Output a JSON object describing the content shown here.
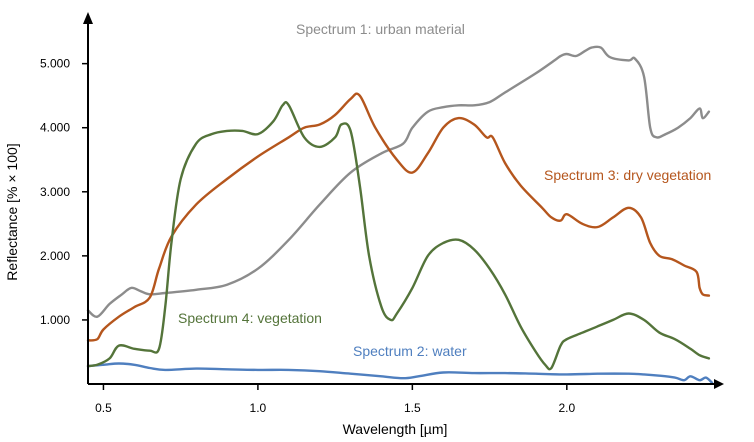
{
  "chart_data": {
    "type": "line",
    "title": "",
    "xlabel": "Wavelength [µm]",
    "ylabel": "Reflectance [% × 100]",
    "xlim": [
      0.45,
      2.47
    ],
    "ylim": [
      0,
      5.65
    ],
    "x_ticks": [
      0.5,
      1.0,
      1.5,
      2.0
    ],
    "x_tick_labels": [
      "0.5",
      "1.0",
      "1.5",
      "2.0"
    ],
    "y_ticks": [
      1,
      2,
      3,
      4,
      5
    ],
    "y_tick_labels": [
      "1.000",
      "2.000",
      "3.000",
      "4.000",
      "5.000"
    ],
    "grid": false,
    "legend": "none",
    "series": [
      {
        "name": "Spectrum 1: urban material",
        "color": "#8c8c8c",
        "x": [
          0.45,
          0.48,
          0.52,
          0.56,
          0.59,
          0.62,
          0.65,
          0.7,
          0.8,
          0.9,
          1.0,
          1.1,
          1.2,
          1.3,
          1.4,
          1.47,
          1.5,
          1.55,
          1.6,
          1.65,
          1.7,
          1.75,
          1.8,
          1.9,
          1.96,
          1.98,
          2.0,
          2.03,
          2.06,
          2.08,
          2.11,
          2.14,
          2.2,
          2.22,
          2.25,
          2.27,
          2.29,
          2.32,
          2.36,
          2.4,
          2.43,
          2.44,
          2.46
        ],
        "y": [
          1.15,
          1.05,
          1.25,
          1.4,
          1.5,
          1.45,
          1.4,
          1.42,
          1.47,
          1.55,
          1.8,
          2.25,
          2.8,
          3.3,
          3.6,
          3.75,
          4.0,
          4.25,
          4.32,
          4.35,
          4.35,
          4.4,
          4.55,
          4.85,
          5.05,
          5.12,
          5.15,
          5.12,
          5.2,
          5.25,
          5.25,
          5.1,
          5.05,
          5.08,
          4.8,
          4.0,
          3.85,
          3.9,
          4.0,
          4.15,
          4.3,
          4.15,
          4.25
        ]
      },
      {
        "name": "Spectrum 2: water",
        "color": "#4f7fbf",
        "x": [
          0.45,
          0.5,
          0.55,
          0.6,
          0.65,
          0.7,
          0.8,
          0.9,
          1.0,
          1.1,
          1.2,
          1.3,
          1.4,
          1.47,
          1.52,
          1.6,
          1.7,
          1.8,
          1.9,
          2.0,
          2.1,
          2.2,
          2.25,
          2.3,
          2.35,
          2.38,
          2.4,
          2.43,
          2.45,
          2.47
        ],
        "y": [
          0.28,
          0.3,
          0.32,
          0.3,
          0.25,
          0.22,
          0.24,
          0.23,
          0.22,
          0.22,
          0.2,
          0.16,
          0.12,
          0.09,
          0.12,
          0.18,
          0.17,
          0.17,
          0.16,
          0.15,
          0.16,
          0.16,
          0.15,
          0.13,
          0.1,
          0.06,
          0.12,
          0.06,
          0.1,
          0.02
        ]
      },
      {
        "name": "Spectrum 3: dry vegetation",
        "color": "#b5561d",
        "x": [
          0.45,
          0.48,
          0.5,
          0.55,
          0.6,
          0.65,
          0.68,
          0.72,
          0.8,
          0.9,
          1.0,
          1.1,
          1.15,
          1.2,
          1.25,
          1.3,
          1.33,
          1.38,
          1.45,
          1.5,
          1.55,
          1.6,
          1.65,
          1.7,
          1.74,
          1.76,
          1.8,
          1.85,
          1.92,
          1.95,
          1.98,
          2.0,
          2.05,
          2.1,
          2.15,
          2.2,
          2.24,
          2.27,
          2.3,
          2.34,
          2.38,
          2.42,
          2.43,
          2.44,
          2.46
        ],
        "y": [
          0.68,
          0.7,
          0.85,
          1.05,
          1.2,
          1.35,
          1.8,
          2.3,
          2.8,
          3.2,
          3.55,
          3.85,
          4.0,
          4.05,
          4.2,
          4.45,
          4.5,
          4.0,
          3.5,
          3.3,
          3.6,
          4.0,
          4.15,
          4.05,
          3.85,
          3.85,
          3.45,
          3.1,
          2.75,
          2.6,
          2.55,
          2.65,
          2.5,
          2.45,
          2.6,
          2.75,
          2.6,
          2.2,
          2.0,
          1.95,
          1.85,
          1.75,
          1.5,
          1.4,
          1.38
        ]
      },
      {
        "name": "Spectrum 4: vegetation",
        "color": "#54743a",
        "x": [
          0.45,
          0.48,
          0.52,
          0.55,
          0.6,
          0.65,
          0.68,
          0.7,
          0.72,
          0.75,
          0.8,
          0.85,
          0.9,
          0.95,
          1.0,
          1.05,
          1.08,
          1.1,
          1.15,
          1.2,
          1.25,
          1.27,
          1.3,
          1.33,
          1.36,
          1.4,
          1.43,
          1.45,
          1.5,
          1.55,
          1.6,
          1.65,
          1.7,
          1.75,
          1.8,
          1.85,
          1.9,
          1.93,
          1.95,
          1.98,
          2.0,
          2.05,
          2.1,
          2.15,
          2.2,
          2.25,
          2.3,
          2.35,
          2.4,
          2.43,
          2.46
        ],
        "y": [
          0.28,
          0.3,
          0.4,
          0.6,
          0.55,
          0.52,
          0.55,
          1.2,
          2.2,
          3.2,
          3.75,
          3.9,
          3.95,
          3.95,
          3.9,
          4.1,
          4.35,
          4.35,
          3.85,
          3.7,
          3.85,
          4.05,
          3.95,
          3.1,
          2.0,
          1.2,
          1.0,
          1.1,
          1.5,
          2.0,
          2.2,
          2.25,
          2.1,
          1.8,
          1.4,
          0.9,
          0.5,
          0.3,
          0.25,
          0.6,
          0.7,
          0.8,
          0.9,
          1.0,
          1.1,
          1.0,
          0.8,
          0.7,
          0.55,
          0.45,
          0.4
        ]
      }
    ]
  }
}
